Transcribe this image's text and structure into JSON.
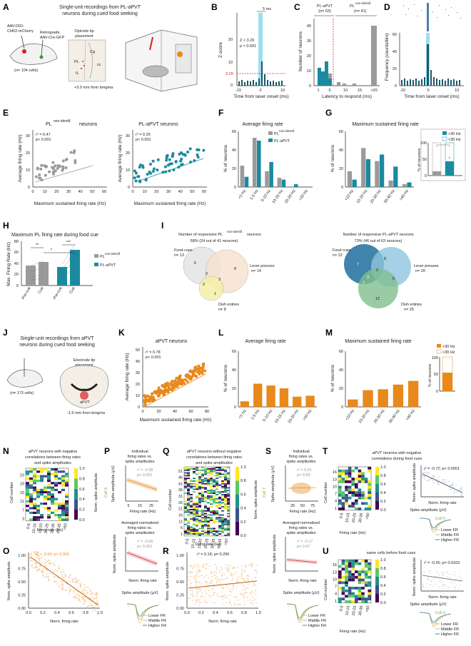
{
  "colors": {
    "gray": "#9a9a9a",
    "teal": "#1a8a9e",
    "orange": "#e8891c",
    "lightblue": "#5bc8e8",
    "red": "#d62020"
  },
  "panelA": {
    "label": "A",
    "title1": "Single-unit recordings from PL-aPVT",
    "title2": "neurons during cued food seeking",
    "virus1": "AAV-DIO-",
    "virus2": "ChR2-mCherry",
    "retro1": "Retrograde",
    "retro2": "AAV-Cre-GFP",
    "n": "(n= 104 cells)",
    "optrode1": "Optrode tip",
    "optrode2": "placement",
    "bregma": "+3.0 mm from bregma",
    "region_cg": "Cg",
    "region_pl": "PL",
    "region_il": "IL",
    "region_cc": "cc"
  },
  "panelB": {
    "label": "B",
    "scale": "5 ms",
    "stat1": "Z > 3.29",
    "stat2": "p < 0.001",
    "thresh": "3.29",
    "ylabel": "Z-score",
    "xlabel": "Time from laser onset (ms)",
    "yticks": [
      "0",
      "10",
      "20"
    ],
    "xticks": [
      "-10",
      "0",
      "10"
    ]
  },
  "panelC": {
    "label": "C",
    "grp1": "PL-aPVT",
    "grp1n": "(n= 63)",
    "grp2": "PL",
    "grp2sup": "non-identif.",
    "grp2n": "(n= 41)",
    "ylabel": "Number of neurons",
    "xlabel": "Latency to respond (ms)",
    "yticks": [
      "0",
      "10",
      "20",
      "30",
      "40"
    ],
    "xticks": [
      "1",
      "5",
      "10",
      "15",
      ">20"
    ]
  },
  "panelD": {
    "label": "D",
    "ylabel": "Frequency (counts/bin)",
    "xlabel": "Time from laser onset (ms)",
    "yticks": [
      "0",
      "20",
      "40",
      "60"
    ],
    "xticks": [
      "-10",
      "0",
      "10"
    ]
  },
  "panelE": {
    "label": "E",
    "title1": "PL",
    "title1sup": "non-identif.",
    "title1end": " neurons",
    "title2": "PL-aPVT neurons",
    "stat1a": "r² = 0.47",
    "stat1b": "p< 0.001",
    "stat2a": "r² = 0.39",
    "stat2b": "p< 0.001",
    "ylabel": "Average firing rate (Hz)",
    "xlabel": "Maximum sustained firing rate (Hz)",
    "yticks": [
      "0",
      "10",
      "20",
      "30"
    ],
    "xticks": [
      "0",
      "10",
      "20",
      "30",
      "40",
      "50",
      "60"
    ]
  },
  "panelF": {
    "label": "F",
    "title": "Average firing rate",
    "leg1": "PL",
    "leg1sup": "non-identif.",
    "leg2": "PL-aPVT",
    "ylabel": "% of neurons",
    "yticks": [
      "0",
      "20",
      "40",
      "60"
    ],
    "cats": [
      "<1 Hz",
      "1-5 Hz",
      "5-10 Hz",
      "10-15 Hz",
      "15-20 Hz",
      ">20 Hz"
    ]
  },
  "panelG": {
    "label": "G",
    "title": "Maximum sustained firing rate",
    "leg1": ">30 Hz",
    "leg2": "<30 Hz",
    "ylabel": "% of neurons",
    "yticks": [
      "0",
      "20",
      "40",
      "60"
    ],
    "cats": [
      "<10 Hz",
      "10-20 Hz",
      "20-30 Hz",
      "30-40 Hz",
      ">40 Hz"
    ],
    "inset_yticks": [
      "0",
      "50",
      "100"
    ],
    "star": "*"
  },
  "panelH": {
    "label": "H",
    "title": "Maximum PL firing rate during food cue",
    "ylabel": "Max. Firing Rate (Hz)",
    "yticks": [
      "0",
      "20",
      "40",
      "60",
      "80"
    ],
    "cats": [
      "Pre-cue",
      "Cue",
      "Pre-cue",
      "Cue"
    ],
    "sig1": "**",
    "sig2": "***",
    "sig3": "*",
    "leg1": "PL",
    "leg1sup": "non-identif.",
    "leg2": "PL-aPVT"
  },
  "panelI": {
    "label": "I",
    "title1a": "Number of responsive PL",
    "title1sup": "non-identif.",
    "title1b": "neurons",
    "sub1": "58% (24 out of 41 neurons)",
    "title2": "Number of responsive PL-aPVT neurons",
    "sub2": "73% (46 out of 63 neurons)",
    "v1": {
      "food": "Food cues",
      "foodn": "n= 13",
      "lever": "Lever presses",
      "levern": "n= 14",
      "dish": "Dish entries",
      "dishn": "n= 8",
      "nums": [
        "6",
        "8",
        "2",
        "3",
        "2",
        "1",
        "0"
      ]
    },
    "v2": {
      "food": "Food cues",
      "foodn": "n= 22",
      "lever": "Lever presses",
      "levern": "n= 20",
      "dish": "Dish entries",
      "dishn": "n= 25",
      "nums": [
        "7",
        "8",
        "0",
        "3",
        "7",
        "6",
        "12"
      ]
    }
  },
  "panelJ": {
    "label": "J",
    "title1": "Single-unit recordings from aPVT",
    "title2": "neurons during cued food seeking",
    "electrode1": "Electrode tip",
    "electrode2": "placement",
    "n": "(n= 173 cells)",
    "bregma": "-1.5 mm from bregma",
    "region": "aPVT"
  },
  "panelK": {
    "label": "K",
    "title": "aPVT neurons",
    "stat1": "r² = 0.78",
    "stat2": "p< 0.001",
    "ylabel": "Average firing rate (Hz)",
    "xlabel": "Maximum sustained firing rate (Hz)",
    "yticks": [
      "0",
      "10",
      "20",
      "30",
      "40",
      "50"
    ],
    "xticks": [
      "0",
      "20",
      "40",
      "60",
      "80"
    ]
  },
  "panelL": {
    "label": "L",
    "title": "Average firing rate",
    "ylabel": "% of neurons",
    "yticks": [
      "0",
      "20",
      "40",
      "60"
    ],
    "cats": [
      "<1 Hz",
      "1-5 Hz",
      "5-10 Hz",
      "10-15 Hz",
      "15-20 Hz",
      ">20 Hz"
    ]
  },
  "panelM": {
    "label": "M",
    "title": "Maximum sustained firing rate",
    "leg1": ">30 Hz",
    "leg2": "<30 Hz",
    "ylabel": "% of neurons",
    "yticks": [
      "0",
      "20",
      "40",
      "60"
    ],
    "cats": [
      "<10 Hz",
      "10-20 Hz",
      "20-30 Hz",
      "30-40 Hz",
      ">40 Hz"
    ],
    "inset_yticks": [
      "0",
      "50",
      "100"
    ]
  },
  "panelN": {
    "label": "N",
    "title1": "aPVT neurons with negative",
    "title2": "correlations between firing rates",
    "title3": "and spike amplitudes",
    "ylabel": "Cell number",
    "xlabel": "Firing rate (Hz)",
    "cbar": "Norm. spike amplitude",
    "yticks": [
      "3",
      "7",
      "11",
      "15",
      "19",
      "23"
    ],
    "xticks": [
      "0-5",
      "10-15",
      "15-20",
      "20-25",
      "30-35",
      "40-45",
      ">50"
    ],
    "cbticks": [
      "0.0",
      "0.2",
      "0.4",
      "0.6",
      "0.8",
      "1.0"
    ]
  },
  "panelO": {
    "label": "O",
    "stat": "r² = -0.54; p< 0.001",
    "ylabel": "Norm. spike amplitude",
    "xlabel": "Norm. firing rate",
    "yticks": [
      "0.00",
      "0.25",
      "0.50",
      "0.75",
      "1.00"
    ],
    "xticks": [
      "0.0",
      "0.2",
      "0.4",
      "0.6",
      "0.8",
      "1.0"
    ]
  },
  "panelP": {
    "label": "P",
    "t1a": "Individual",
    "t1b": "firing rates vs.",
    "t1c": "spike amplitudes",
    "stat1a": "r² = -0.38",
    "stat1b": "p< 0.001",
    "y1": "Spike amplitude (µV)",
    "x1": "Firing rate (Hz)",
    "y1ticks": [
      "-40",
      "-50",
      "-60",
      "-70",
      "-80",
      "-90",
      "-100"
    ],
    "x1ticks": [
      "5",
      "15",
      "25"
    ],
    "t2a": "Averaged normalized",
    "t2b": "firing rates vs.",
    "t2c": "spike amplitudes",
    "stat2a": "r² = -0.66",
    "stat2b": "p< 0.001",
    "y2": "Norm. spike amplitude",
    "x2": "Norm. firing rate",
    "t3": "Spike amplitude (µV)",
    "leg": [
      "Lower FR",
      "Middle FR",
      "Higher FR"
    ],
    "cell": "Cell 6"
  },
  "panelQ": {
    "label": "Q",
    "title1": "aPVT neurons without negative",
    "title2": "correlations between firing rates",
    "title3": "and spike amplitudes",
    "ylabel": "Cell number",
    "xlabel": "Firing rate (Hz)",
    "cbar": "Norm. spike amplitude",
    "yticks": [
      "1",
      "6",
      "11",
      "16",
      "21",
      "26",
      "31",
      "36",
      "41",
      "46",
      "51"
    ],
    "xticks": [
      "0-5",
      "10-15",
      "15-20",
      "20-25",
      "30-35",
      "40-45",
      ">50"
    ],
    "cbticks": [
      "0.0",
      "0.2",
      "0.4",
      "0.6",
      "0.8",
      "1.0"
    ]
  },
  "panelR": {
    "label": "R",
    "stat": "r² = 0.18; p= 0.290",
    "ylabel": "Norm. spike amplitude",
    "xlabel": "Norm. firing rate",
    "yticks": [
      "0.00",
      "0.25",
      "0.50",
      "0.75",
      "1.00"
    ],
    "xticks": [
      "0.0",
      "0.2",
      "0.4",
      "0.6",
      "0.8",
      "1.0"
    ]
  },
  "panelS": {
    "label": "S",
    "t1a": "Individual",
    "t1b": "firing rates vs.",
    "t1c": "spike amplitudes",
    "stat1a": "r² = 0.01",
    "stat1b": "p= 0.89",
    "y1": "Spike amplitude (µV)",
    "x1": "Firing rate (Hz)",
    "x1ticks": [
      "25",
      "50",
      "75"
    ],
    "t2a": "Averaged normalized",
    "t2b": "firing rates vs.",
    "t2c": "spike amplitudes",
    "stat2a": "r² = -0.17",
    "stat2b": "p= 0.47",
    "y2": "Norm. spike amplitude",
    "x2": "Norm. firing rate",
    "t3": "Spike amplitude (µV)",
    "leg": [
      "Lower FR",
      "Middle FR",
      "Higher FR"
    ],
    "cell": "Cell 7"
  },
  "panelT": {
    "label": "T",
    "title1": "aPVT neurons with negative",
    "title2": "correlations during food cues",
    "stat": "r² = -0.72; p< 0.0001",
    "ylabel": "Cell number",
    "xlabel": "Firing rate (Hz)",
    "cbar": "Norm. spike amplitude",
    "yticks": [
      "1",
      "4",
      "7",
      "10",
      "13",
      "16"
    ],
    "xticks": [
      "0-5",
      "10-15",
      "20-25",
      "30-35",
      ">50"
    ],
    "sy": "Norm. spike amplitude",
    "sx": "Norm. firing rate",
    "wave": "Spike amplitude (µV)",
    "cell": "Cell 6",
    "leg": [
      "Lower FR",
      "Middle FR",
      "Higher FR"
    ]
  },
  "panelU": {
    "label": "U",
    "title": "same cells before food cues",
    "stat": "r² = -0.26; p= 0.0163",
    "ylabel": "Cell number",
    "xlabel": "Firing rate (Hz)",
    "cbar": "Norm. spike amplitude",
    "sy": "Norm. spike amplitude",
    "sx": "Norm. firing rate",
    "wave": "Spike amplitude (µV)",
    "cell": "Cell 6",
    "leg": [
      "Lower FR",
      "Middle FR",
      "Higher FR"
    ]
  },
  "chart_data": [
    {
      "panel": "F",
      "type": "bar",
      "title": "Average firing rate",
      "categories": [
        "<1 Hz",
        "1-5 Hz",
        "5-10 Hz",
        "10-15 Hz",
        "15-20 Hz",
        ">20 Hz"
      ],
      "series": [
        {
          "name": "PL non-identif.",
          "values": [
            23,
            53,
            17,
            10,
            0,
            0
          ]
        },
        {
          "name": "PL-aPVT",
          "values": [
            11,
            50,
            27,
            8,
            3,
            0
          ]
        }
      ],
      "ylabel": "% of neurons",
      "ylim": [
        0,
        60
      ]
    },
    {
      "panel": "G",
      "type": "bar",
      "title": "Maximum sustained firing rate",
      "categories": [
        "<10 Hz",
        "10-20 Hz",
        "20-30 Hz",
        "30-40 Hz",
        ">40 Hz"
      ],
      "series": [
        {
          "name": "PL non-identif.",
          "values": [
            17,
            42,
            28,
            7,
            3
          ]
        },
        {
          "name": "PL-aPVT",
          "values": [
            8,
            30,
            35,
            22,
            5
          ]
        }
      ],
      "ylabel": "% of neurons",
      "ylim": [
        0,
        60
      ]
    },
    {
      "panel": "L",
      "type": "bar",
      "title": "Average firing rate",
      "categories": [
        "<1 Hz",
        "1-5 Hz",
        "5-10 Hz",
        "10-15 Hz",
        "15-20 Hz",
        ">20 Hz"
      ],
      "values": [
        6,
        25,
        23,
        20,
        11,
        12
      ],
      "ylabel": "% of neurons",
      "ylim": [
        0,
        60
      ]
    },
    {
      "panel": "M",
      "type": "bar",
      "title": "Maximum sustained firing rate",
      "categories": [
        "<10 Hz",
        "10-20 Hz",
        "20-30 Hz",
        "30-40 Hz",
        ">40 Hz"
      ],
      "values": [
        8,
        18,
        19,
        24,
        28
      ],
      "ylabel": "% of neurons",
      "ylim": [
        0,
        60
      ]
    }
  ]
}
